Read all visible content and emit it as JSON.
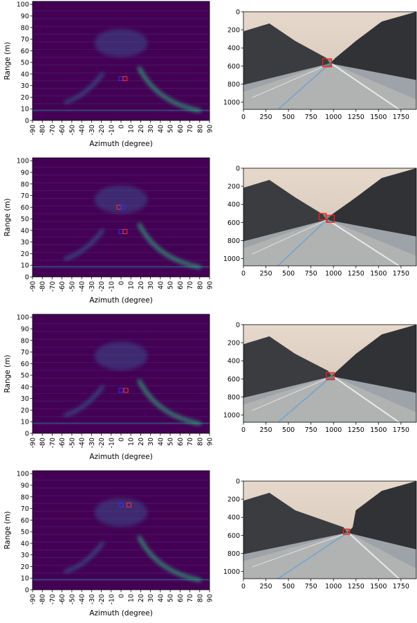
{
  "chart_data": [
    {
      "type": "heatmap",
      "xlabel": "Azimuth (degree)",
      "ylabel": "Range (m)",
      "xlim": [
        -90,
        90
      ],
      "ylim": [
        0,
        102.5
      ],
      "xticks": [
        -90,
        -80,
        -70,
        -60,
        -50,
        -40,
        -30,
        -20,
        -10,
        0,
        10,
        20,
        30,
        40,
        50,
        60,
        70,
        80,
        90
      ],
      "yticks": [
        0,
        10,
        20,
        30,
        40,
        50,
        60,
        70,
        80,
        90,
        100
      ],
      "markers": {
        "x": [
          0,
          4
        ],
        "y": [
          36,
          36
        ],
        "colors": [
          "#3030ff",
          "#ff3030"
        ]
      }
    },
    {
      "type": "image",
      "xlim": [
        0,
        1920
      ],
      "ylim": [
        1080,
        0
      ],
      "xticks": [
        0,
        250,
        500,
        750,
        1000,
        1250,
        1500,
        1750
      ],
      "yticks": [
        0,
        200,
        400,
        600,
        800,
        1000
      ],
      "color": "#ff2020",
      "boxes": {
        "x0": [
          880
        ],
        "x1": [
          980
        ],
        "y0": [
          520
        ],
        "y1": [
          610
        ]
      }
    },
    {
      "type": "heatmap",
      "xlabel": "Azimuth (degree)",
      "ylabel": "Range (m)",
      "xlim": [
        -90,
        90
      ],
      "ylim": [
        0,
        102.5
      ],
      "xticks": [
        -90,
        -80,
        -70,
        -60,
        -50,
        -40,
        -30,
        -20,
        -10,
        0,
        10,
        20,
        30,
        40,
        50,
        60,
        70,
        80,
        90
      ],
      "yticks": [
        0,
        10,
        20,
        30,
        40,
        50,
        60,
        70,
        80,
        90,
        100
      ],
      "markers": {
        "x": [
          -2,
          2,
          0,
          4
        ],
        "y": [
          60,
          60,
          39,
          39
        ],
        "colors": [
          "#ff3030",
          "#3030ff",
          "#3030ff",
          "#ff3030"
        ]
      }
    },
    {
      "type": "image",
      "xlim": [
        0,
        1920
      ],
      "ylim": [
        1080,
        0
      ],
      "xticks": [
        0,
        250,
        500,
        750,
        1000,
        1250,
        1500,
        1750
      ],
      "yticks": [
        0,
        200,
        400,
        600,
        800,
        1000
      ],
      "color": "#ff2020",
      "boxes": {
        "x0": [
          840,
          920
        ],
        "x1": [
          920,
          1010
        ],
        "y0": [
          500,
          520
        ],
        "y1": [
          570,
          600
        ]
      }
    },
    {
      "type": "heatmap",
      "xlabel": "Azimuth (degree)",
      "ylabel": "Range (m)",
      "xlim": [
        -90,
        90
      ],
      "ylim": [
        0,
        102.5
      ],
      "xticks": [
        -90,
        -80,
        -70,
        -60,
        -50,
        -40,
        -30,
        -20,
        -10,
        0,
        10,
        20,
        30,
        40,
        50,
        60,
        70,
        80,
        90
      ],
      "yticks": [
        0,
        10,
        20,
        30,
        40,
        50,
        60,
        70,
        80,
        90,
        100
      ],
      "markers": {
        "x": [
          0,
          5
        ],
        "y": [
          37,
          37
        ],
        "colors": [
          "#3030ff",
          "#ff3030"
        ]
      }
    },
    {
      "type": "image",
      "xlim": [
        0,
        1920
      ],
      "ylim": [
        1080,
        0
      ],
      "xticks": [
        0,
        250,
        500,
        750,
        1000,
        1250,
        1500,
        1750
      ],
      "yticks": [
        0,
        200,
        400,
        600,
        800,
        1000
      ],
      "color": "#ff2020",
      "boxes": {
        "x0": [
          920
        ],
        "x1": [
          1010
        ],
        "y0": [
          530
        ],
        "y1": [
          610
        ]
      }
    },
    {
      "type": "heatmap",
      "xlabel": "Azimuth (degree)",
      "ylabel": "Range (m)",
      "xlim": [
        -90,
        90
      ],
      "ylim": [
        0,
        102.5
      ],
      "xticks": [
        -90,
        -80,
        -70,
        -60,
        -50,
        -40,
        -30,
        -20,
        -10,
        0,
        10,
        20,
        30,
        40,
        50,
        60,
        70,
        80,
        90
      ],
      "yticks": [
        0,
        10,
        20,
        30,
        40,
        50,
        60,
        70,
        80,
        90,
        100
      ],
      "markers": {
        "x": [
          0,
          8
        ],
        "y": [
          73,
          73
        ],
        "colors": [
          "#3030ff",
          "#ff3030"
        ]
      }
    },
    {
      "type": "image",
      "xlim": [
        0,
        1920
      ],
      "ylim": [
        1080,
        0
      ],
      "xticks": [
        0,
        250,
        500,
        750,
        1000,
        1250,
        1500,
        1750
      ],
      "yticks": [
        0,
        200,
        400,
        600,
        800,
        1000
      ],
      "color": "#ff2020",
      "boxes": {
        "x0": [
          1110
        ],
        "x1": [
          1180
        ],
        "y0": [
          530
        ],
        "y1": [
          590
        ]
      }
    }
  ]
}
